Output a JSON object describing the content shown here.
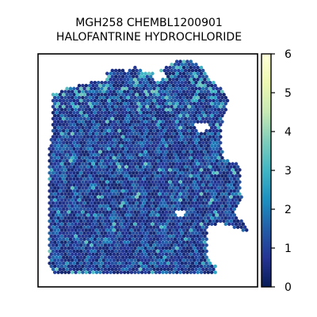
{
  "chart_data": {
    "type": "heatmap",
    "title_lines": [
      "MGH258 CHEMBL1200901",
      "HALOFANTRINE HYDROCHLORIDE"
    ],
    "xlabel": "",
    "ylabel": "",
    "grid": false,
    "colorbar": {
      "orientation": "vertical",
      "placement": "right",
      "colormap": "YlGnBu",
      "min": 0,
      "max": 6,
      "ticks": [
        0,
        1,
        2,
        3,
        4,
        5,
        6
      ],
      "tick_labels": [
        "0",
        "1",
        "2",
        "3",
        "4",
        "5",
        "6"
      ],
      "stops": [
        "#081d58",
        "#253494",
        "#225ea8",
        "#1d91c0",
        "#41b6c4",
        "#7fcdbb",
        "#c7e9b4",
        "#edf8b1",
        "#ffffd9"
      ]
    },
    "value_distribution": {
      "typical_range": [
        0.3,
        2.0
      ],
      "occasional_high_range": [
        2.5,
        3.6
      ],
      "high_values_concentrated": "upper tissue region"
    }
  }
}
